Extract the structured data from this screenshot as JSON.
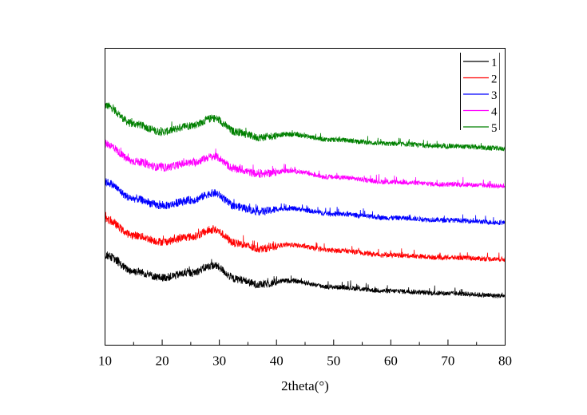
{
  "chart_data": {
    "type": "line",
    "title": "",
    "xlabel": "2theta(°)",
    "ylabel": "",
    "xlim": [
      10,
      80
    ],
    "ylim": [
      0,
      373
    ],
    "x_ticks": [
      "10",
      "20",
      "30",
      "40",
      "50",
      "60",
      "70",
      "80"
    ],
    "grid": false,
    "legend_position": "top-right",
    "x": [
      10,
      15,
      20,
      25,
      29,
      33,
      37,
      42,
      50,
      60,
      70,
      80
    ],
    "series": [
      {
        "name": "1",
        "color": "#000000",
        "values": [
          113,
          93,
          85,
          91,
          100,
          83,
          76,
          81,
          73,
          68,
          65,
          62
        ]
      },
      {
        "name": "2",
        "color": "#ff0000",
        "values": [
          158,
          138,
          130,
          136,
          145,
          128,
          121,
          126,
          119,
          113,
          110,
          108
        ]
      },
      {
        "name": "3",
        "color": "#0000ff",
        "values": [
          205,
          184,
          175,
          182,
          191,
          174,
          168,
          172,
          165,
          160,
          157,
          154
        ]
      },
      {
        "name": "4",
        "color": "#ff00ff",
        "values": [
          253,
          231,
          223,
          229,
          237,
          221,
          215,
          219,
          211,
          205,
          202,
          200
        ]
      },
      {
        "name": "5",
        "color": "#008000",
        "values": [
          301,
          278,
          268,
          276,
          285,
          268,
          261,
          265,
          258,
          253,
          250,
          247
        ]
      }
    ]
  }
}
